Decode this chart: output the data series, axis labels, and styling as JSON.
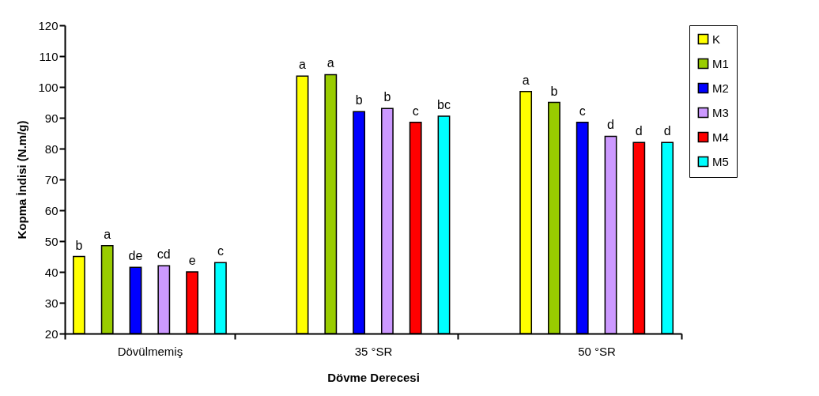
{
  "chart_data": {
    "type": "bar",
    "xlabel": "Dövme Derecesi",
    "ylabel": "Kopma İndisi (N.m/g)",
    "categories": [
      "Dövülmemiş",
      "35 °SR",
      "50 °SR"
    ],
    "series": [
      {
        "name": "K",
        "color": "#ffff00",
        "values": [
          45,
          103.5,
          98.5
        ]
      },
      {
        "name": "M1",
        "color": "#99cc00",
        "values": [
          48.5,
          104,
          95
        ]
      },
      {
        "name": "M2",
        "color": "#0000ff",
        "values": [
          41.5,
          92,
          88.5
        ]
      },
      {
        "name": "M3",
        "color": "#cc99ff",
        "values": [
          42,
          93,
          84
        ]
      },
      {
        "name": "M4",
        "color": "#ff0000",
        "values": [
          40,
          88.5,
          82
        ]
      },
      {
        "name": "M5",
        "color": "#00ffff",
        "values": [
          43,
          90.5,
          82
        ]
      }
    ],
    "ylim": [
      20,
      120
    ],
    "yticks": [
      20,
      30,
      40,
      50,
      60,
      70,
      80,
      90,
      100,
      110,
      120
    ],
    "grid": false,
    "legend": "right",
    "annotations": [
      "b",
      "a",
      "de",
      "cd",
      "e",
      "c",
      "a",
      "a",
      "b",
      "b",
      "c",
      "bc",
      "a",
      "b",
      "c",
      "d",
      "d",
      "d"
    ]
  }
}
